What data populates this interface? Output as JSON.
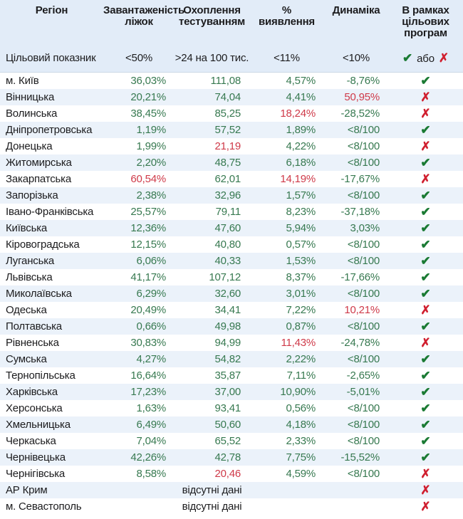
{
  "symbols": {
    "check": "✔",
    "cross": "✗"
  },
  "colors": {
    "header_bg": "#e2ecf8",
    "stripe_bg": "#ebf2fa",
    "good_value": "#377950",
    "bad_value": "#cf3a49",
    "check_icon": "#1a7a33",
    "cross_icon": "#d01f2f",
    "text": "#1c1c1e"
  },
  "chart_data": {
    "type": "table",
    "columns": [
      {
        "id": "region",
        "label_lines": [
          "Регіон"
        ]
      },
      {
        "id": "beds",
        "label_lines": [
          "Завантаженість",
          "ліжок"
        ]
      },
      {
        "id": "testing",
        "label_lines": [
          "Охоплення",
          "тестуванням"
        ]
      },
      {
        "id": "detection",
        "label_lines": [
          "%",
          "виявлення"
        ]
      },
      {
        "id": "dynamics",
        "label_lines": [
          "Динаміка"
        ]
      },
      {
        "id": "program",
        "label_lines": [
          "В рамках",
          "цільових",
          "програм"
        ]
      }
    ],
    "target": {
      "label": "Цільовий показник",
      "beds": "<50%",
      "testing": ">24 на 100 тис.",
      "detection": "<11%",
      "dynamics": "<10%",
      "or_label": "або"
    },
    "no_data_label": "відсутні дані",
    "rows": [
      {
        "region": "м. Київ",
        "beds": "36,03%",
        "beds_status": "good",
        "testing": "111,08",
        "testing_status": "good",
        "detection": "4,57%",
        "detection_status": "good",
        "dynamics": "-8,76%",
        "dynamics_status": "good",
        "program": "pass"
      },
      {
        "region": "Вінницька",
        "beds": "20,21%",
        "beds_status": "good",
        "testing": "74,04",
        "testing_status": "good",
        "detection": "4,41%",
        "detection_status": "good",
        "dynamics": "50,95%",
        "dynamics_status": "bad",
        "program": "fail"
      },
      {
        "region": "Волинська",
        "beds": "38,45%",
        "beds_status": "good",
        "testing": "85,25",
        "testing_status": "good",
        "detection": "18,24%",
        "detection_status": "bad",
        "dynamics": "-28,52%",
        "dynamics_status": "good",
        "program": "fail"
      },
      {
        "region": "Дніпропетровська",
        "beds": "1,19%",
        "beds_status": "good",
        "testing": "57,52",
        "testing_status": "good",
        "detection": "1,89%",
        "detection_status": "good",
        "dynamics": "<8/100",
        "dynamics_status": "good",
        "program": "pass"
      },
      {
        "region": "Донецька",
        "beds": "1,99%",
        "beds_status": "good",
        "testing": "21,19",
        "testing_status": "bad",
        "detection": "4,22%",
        "detection_status": "good",
        "dynamics": "<8/100",
        "dynamics_status": "good",
        "program": "fail"
      },
      {
        "region": "Житомирська",
        "beds": "2,20%",
        "beds_status": "good",
        "testing": "48,75",
        "testing_status": "good",
        "detection": "6,18%",
        "detection_status": "good",
        "dynamics": "<8/100",
        "dynamics_status": "good",
        "program": "pass"
      },
      {
        "region": "Закарпатська",
        "beds": "60,54%",
        "beds_status": "bad",
        "testing": "62,01",
        "testing_status": "good",
        "detection": "14,19%",
        "detection_status": "bad",
        "dynamics": "-17,67%",
        "dynamics_status": "good",
        "program": "fail"
      },
      {
        "region": "Запорізька",
        "beds": "2,38%",
        "beds_status": "good",
        "testing": "32,96",
        "testing_status": "good",
        "detection": "1,57%",
        "detection_status": "good",
        "dynamics": "<8/100",
        "dynamics_status": "good",
        "program": "pass"
      },
      {
        "region": "Івано-Франківська",
        "beds": "25,57%",
        "beds_status": "good",
        "testing": "79,11",
        "testing_status": "good",
        "detection": "8,23%",
        "detection_status": "good",
        "dynamics": "-37,18%",
        "dynamics_status": "good",
        "program": "pass"
      },
      {
        "region": "Київська",
        "beds": "12,36%",
        "beds_status": "good",
        "testing": "47,60",
        "testing_status": "good",
        "detection": "5,94%",
        "detection_status": "good",
        "dynamics": "3,03%",
        "dynamics_status": "good",
        "program": "pass"
      },
      {
        "region": "Кіровоградська",
        "beds": "12,15%",
        "beds_status": "good",
        "testing": "40,80",
        "testing_status": "good",
        "detection": "0,57%",
        "detection_status": "good",
        "dynamics": "<8/100",
        "dynamics_status": "good",
        "program": "pass"
      },
      {
        "region": "Луганська",
        "beds": "6,06%",
        "beds_status": "good",
        "testing": "40,33",
        "testing_status": "good",
        "detection": "1,53%",
        "detection_status": "good",
        "dynamics": "<8/100",
        "dynamics_status": "good",
        "program": "pass"
      },
      {
        "region": "Львівська",
        "beds": "41,17%",
        "beds_status": "good",
        "testing": "107,12",
        "testing_status": "good",
        "detection": "8,37%",
        "detection_status": "good",
        "dynamics": "-17,66%",
        "dynamics_status": "good",
        "program": "pass"
      },
      {
        "region": "Миколаївська",
        "beds": "6,29%",
        "beds_status": "good",
        "testing": "32,60",
        "testing_status": "good",
        "detection": "3,01%",
        "detection_status": "good",
        "dynamics": "<8/100",
        "dynamics_status": "good",
        "program": "pass"
      },
      {
        "region": "Одеська",
        "beds": "20,49%",
        "beds_status": "good",
        "testing": "34,41",
        "testing_status": "good",
        "detection": "7,22%",
        "detection_status": "good",
        "dynamics": "10,21%",
        "dynamics_status": "bad",
        "program": "fail"
      },
      {
        "region": "Полтавська",
        "beds": "0,66%",
        "beds_status": "good",
        "testing": "49,98",
        "testing_status": "good",
        "detection": "0,87%",
        "detection_status": "good",
        "dynamics": "<8/100",
        "dynamics_status": "good",
        "program": "pass"
      },
      {
        "region": "Рівненська",
        "beds": "30,83%",
        "beds_status": "good",
        "testing": "94,99",
        "testing_status": "good",
        "detection": "11,43%",
        "detection_status": "bad",
        "dynamics": "-24,78%",
        "dynamics_status": "good",
        "program": "fail"
      },
      {
        "region": "Сумська",
        "beds": "4,27%",
        "beds_status": "good",
        "testing": "54,82",
        "testing_status": "good",
        "detection": "2,22%",
        "detection_status": "good",
        "dynamics": "<8/100",
        "dynamics_status": "good",
        "program": "pass"
      },
      {
        "region": "Тернопільська",
        "beds": "16,64%",
        "beds_status": "good",
        "testing": "35,87",
        "testing_status": "good",
        "detection": "7,11%",
        "detection_status": "good",
        "dynamics": "-2,65%",
        "dynamics_status": "good",
        "program": "pass"
      },
      {
        "region": "Харківська",
        "beds": "17,23%",
        "beds_status": "good",
        "testing": "37,00",
        "testing_status": "good",
        "detection": "10,90%",
        "detection_status": "good",
        "dynamics": "-5,01%",
        "dynamics_status": "good",
        "program": "pass"
      },
      {
        "region": "Херсонська",
        "beds": "1,63%",
        "beds_status": "good",
        "testing": "93,41",
        "testing_status": "good",
        "detection": "0,56%",
        "detection_status": "good",
        "dynamics": "<8/100",
        "dynamics_status": "good",
        "program": "pass"
      },
      {
        "region": "Хмельницька",
        "beds": "6,49%",
        "beds_status": "good",
        "testing": "50,60",
        "testing_status": "good",
        "detection": "4,18%",
        "detection_status": "good",
        "dynamics": "<8/100",
        "dynamics_status": "good",
        "program": "pass"
      },
      {
        "region": "Черкаська",
        "beds": "7,04%",
        "beds_status": "good",
        "testing": "65,52",
        "testing_status": "good",
        "detection": "2,33%",
        "detection_status": "good",
        "dynamics": "<8/100",
        "dynamics_status": "good",
        "program": "pass"
      },
      {
        "region": "Чернівецька",
        "beds": "42,26%",
        "beds_status": "good",
        "testing": "42,78",
        "testing_status": "good",
        "detection": "7,75%",
        "detection_status": "good",
        "dynamics": "-15,52%",
        "dynamics_status": "good",
        "program": "pass"
      },
      {
        "region": "Чернігівська",
        "beds": "8,58%",
        "beds_status": "good",
        "testing": "20,46",
        "testing_status": "bad",
        "detection": "4,59%",
        "detection_status": "good",
        "dynamics": "<8/100",
        "dynamics_status": "good",
        "program": "fail"
      },
      {
        "region": "АР Крим",
        "no_data": true,
        "program": "fail"
      },
      {
        "region": "м. Севастополь",
        "no_data": true,
        "program": "fail"
      }
    ]
  }
}
